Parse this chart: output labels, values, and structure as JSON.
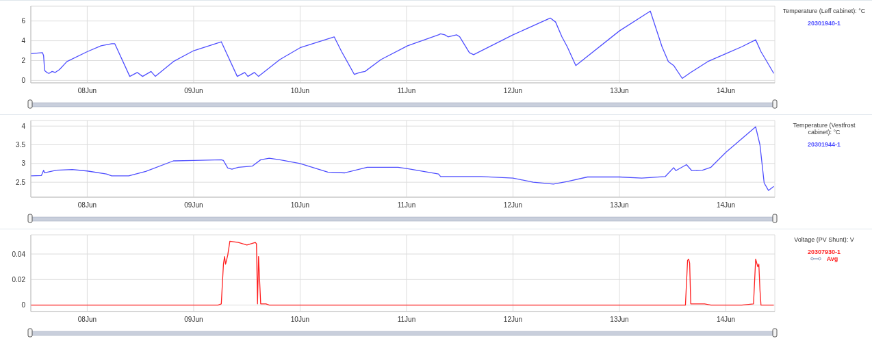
{
  "chart_data": [
    {
      "type": "line",
      "legend_title": "Temperature (Leff cabinet): °C",
      "legend": "top right",
      "grid": true,
      "marker": "none",
      "xlim": [
        "--06-07T11:17",
        "--06-14T11:02"
      ],
      "xticks": [
        {
          "value": "--06-08",
          "label": "08Jun"
        },
        {
          "value": "--06-09",
          "label": "09Jun"
        },
        {
          "value": "--06-10",
          "label": "10Jun"
        },
        {
          "value": "--06-11",
          "label": "11Jun"
        },
        {
          "value": "--06-12",
          "label": "12Jun"
        },
        {
          "value": "--06-13",
          "label": "13Jun"
        },
        {
          "value": "--06-14",
          "label": "14Jun"
        }
      ],
      "ylim": [
        -0.25,
        7.5
      ],
      "yticks": [
        0,
        2,
        4,
        6
      ],
      "series": [
        {
          "name": "20301940-1",
          "color": "#4f4fff",
          "x": [
            "--06-07T11:17",
            "--06-07T13:55",
            "--06-07T14:10",
            "--06-07T14:24",
            "--06-07T14:53",
            "--06-07T15:22",
            "--06-07T16:05",
            "--06-07T16:48",
            "--06-07T17:46",
            "--06-07T19:26",
            "--06-08T00:00",
            "--06-08T03:07",
            "--06-08T05:31",
            "--06-08T06:14",
            "--06-08T09:36",
            "--06-08T11:17",
            "--06-08T12:29",
            "--06-08T14:24",
            "--06-08T15:22",
            "--06-08T19:26",
            "--06-09T00:00",
            "--06-09T06:14",
            "--06-09T09:50",
            "--06-09T11:31",
            "--06-09T12:14",
            "--06-09T13:41",
            "--06-09T14:38",
            "--06-09T19:26",
            "--06-10T00:00",
            "--06-10T07:41",
            "--06-10T09:22",
            "--06-10T12:14",
            "--06-10T13:26",
            "--06-10T14:38",
            "--06-10T18:14",
            "--06-11T00:14",
            "--06-11T07:12",
            "--06-11T07:41",
            "--06-11T08:38",
            "--06-11T09:22",
            "--06-11T11:17",
            "--06-11T12:00",
            "--06-11T14:10",
            "--06-11T15:07",
            "--06-12T00:00",
            "--06-12T08:24",
            "--06-12T09:36",
            "--06-12T11:02",
            "--06-12T12:14",
            "--06-12T14:10",
            "--06-13T00:00",
            "--06-13T06:58",
            "--06-13T09:36",
            "--06-13T11:02",
            "--06-13T12:14",
            "--06-13T14:10",
            "--06-13T16:05",
            "--06-13T19:55",
            "--06-14T00:00",
            "--06-14T03:36",
            "--06-14T06:43",
            "--06-14T07:55",
            "--06-14T09:07",
            "--06-14T10:48"
          ],
          "values": [
            2.7,
            2.8,
            2.5,
            1.0,
            0.8,
            0.7,
            0.9,
            0.8,
            1.1,
            1.9,
            2.9,
            3.5,
            3.7,
            3.7,
            0.4,
            0.8,
            0.4,
            0.9,
            0.4,
            1.9,
            3.0,
            3.9,
            0.4,
            0.8,
            0.4,
            0.8,
            0.4,
            2.1,
            3.3,
            4.4,
            2.9,
            0.6,
            0.8,
            0.9,
            2.1,
            3.5,
            4.6,
            4.7,
            4.6,
            4.4,
            4.6,
            4.4,
            2.8,
            2.6,
            4.6,
            6.3,
            5.9,
            4.4,
            3.4,
            1.5,
            5.0,
            7.0,
            3.4,
            1.9,
            1.5,
            0.2,
            0.8,
            1.9,
            2.7,
            3.4,
            4.1,
            2.9,
            2.0,
            0.7
          ]
        }
      ]
    },
    {
      "type": "line",
      "legend_title": "Temperature (Vestfrost cabinet): °C",
      "legend": "top right",
      "grid": true,
      "marker": "none",
      "xlim": [
        "--06-07T11:17",
        "--06-14T11:02"
      ],
      "xticks": [
        {
          "value": "--06-08",
          "label": "08Jun"
        },
        {
          "value": "--06-09",
          "label": "09Jun"
        },
        {
          "value": "--06-10",
          "label": "10Jun"
        },
        {
          "value": "--06-11",
          "label": "11Jun"
        },
        {
          "value": "--06-12",
          "label": "12Jun"
        },
        {
          "value": "--06-13",
          "label": "13Jun"
        },
        {
          "value": "--06-14",
          "label": "14Jun"
        }
      ],
      "ylim": [
        2.1,
        4.15
      ],
      "yticks": [
        2.5,
        3,
        3.5,
        4
      ],
      "series": [
        {
          "name": "20301944-1",
          "color": "#4f4fff",
          "x": [
            "--06-07T11:17",
            "--06-07T13:41",
            "--06-07T14:10",
            "--06-07T14:24",
            "--06-07T17:02",
            "--06-07T20:38",
            "--06-08T00:00",
            "--06-08T04:19",
            "--06-08T05:31",
            "--06-08T09:22",
            "--06-08T13:12",
            "--06-08T19:26",
            "--06-09T00:00",
            "--06-09T06:14",
            "--06-09T06:43",
            "--06-09T07:41",
            "--06-09T08:38",
            "--06-09T10:05",
            "--06-09T13:12",
            "--06-09T15:07",
            "--06-09T17:02",
            "--06-09T19:26",
            "--06-10T00:00",
            "--06-10T06:14",
            "--06-10T10:05",
            "--06-10T15:07",
            "--06-10T22:05",
            "--06-11T00:14",
            "--06-11T07:12",
            "--06-11T07:41",
            "--06-11T16:48",
            "--06-12T00:00",
            "--06-12T04:34",
            "--06-12T09:07",
            "--06-12T12:14",
            "--06-12T16:48",
            "--06-13T00:00",
            "--06-13T05:02",
            "--06-13T10:19",
            "--06-13T12:14",
            "--06-13T12:43",
            "--06-13T15:07",
            "--06-13T16:19",
            "--06-13T18:43",
            "--06-13T20:38",
            "--06-14T00:00",
            "--06-14T06:43",
            "--06-14T07:41",
            "--06-14T08:38",
            "--06-14T09:36",
            "--06-14T10:48"
          ],
          "values": [
            2.67,
            2.68,
            2.82,
            2.75,
            2.82,
            2.84,
            2.8,
            2.72,
            2.67,
            2.67,
            2.79,
            3.07,
            3.08,
            3.1,
            3.08,
            2.88,
            2.85,
            2.9,
            2.93,
            3.1,
            3.14,
            3.1,
            3.0,
            2.77,
            2.75,
            2.9,
            2.9,
            2.86,
            2.72,
            2.65,
            2.65,
            2.61,
            2.5,
            2.45,
            2.52,
            2.64,
            2.64,
            2.61,
            2.65,
            2.89,
            2.81,
            2.97,
            2.81,
            2.82,
            2.9,
            3.3,
            3.98,
            3.5,
            2.48,
            2.28,
            2.39
          ]
        }
      ]
    },
    {
      "type": "line",
      "legend_title": "Voltage (PV Shunt): V",
      "legend": "top right",
      "grid": true,
      "marker": "none",
      "annotations": [
        "Avg"
      ],
      "xlim": [
        "--06-07T11:17",
        "--06-14T11:02"
      ],
      "xticks": [
        {
          "value": "--06-08",
          "label": "08Jun"
        },
        {
          "value": "--06-09",
          "label": "09Jun"
        },
        {
          "value": "--06-10",
          "label": "10Jun"
        },
        {
          "value": "--06-11",
          "label": "11Jun"
        },
        {
          "value": "--06-12",
          "label": "12Jun"
        },
        {
          "value": "--06-13",
          "label": "13Jun"
        },
        {
          "value": "--06-14",
          "label": "14Jun"
        }
      ],
      "ylim": [
        -0.005,
        0.055
      ],
      "yticks": [
        0,
        0.02,
        0.04
      ],
      "series": [
        {
          "name": "20307930-1",
          "color": "#ff2020",
          "x": [
            "--06-07T11:17",
            "--06-09T05:31",
            "--06-09T06:14",
            "--06-09T06:43",
            "--06-09T06:58",
            "--06-09T07:12",
            "--06-09T07:41",
            "--06-09T08:10",
            "--06-09T10:05",
            "--06-09T12:00",
            "--06-09T13:55",
            "--06-09T14:10",
            "--06-09T14:24",
            "--06-09T14:38",
            "--06-09T15:07",
            "--06-09T16:19",
            "--06-09T17:02",
            "--06-13T14:53",
            "--06-13T15:22",
            "--06-13T15:36",
            "--06-13T15:50",
            "--06-13T16:05",
            "--06-13T19:12",
            "--06-13T20:38",
            "--06-14T03:36",
            "--06-14T06:14",
            "--06-14T06:43",
            "--06-14T07:12",
            "--06-14T07:26",
            "--06-14T07:41",
            "--06-14T07:55",
            "--06-14T10:48"
          ],
          "values": [
            0,
            0,
            0.001,
            0.032,
            0.038,
            0.032,
            0.039,
            0.05,
            0.049,
            0.047,
            0.049,
            0.048,
            0.001,
            0.038,
            0.001,
            0.001,
            0,
            0,
            0.035,
            0.036,
            0.033,
            0.001,
            0.001,
            0,
            0,
            0.001,
            0.036,
            0.03,
            0.032,
            0.012,
            0,
            0
          ]
        }
      ]
    }
  ]
}
